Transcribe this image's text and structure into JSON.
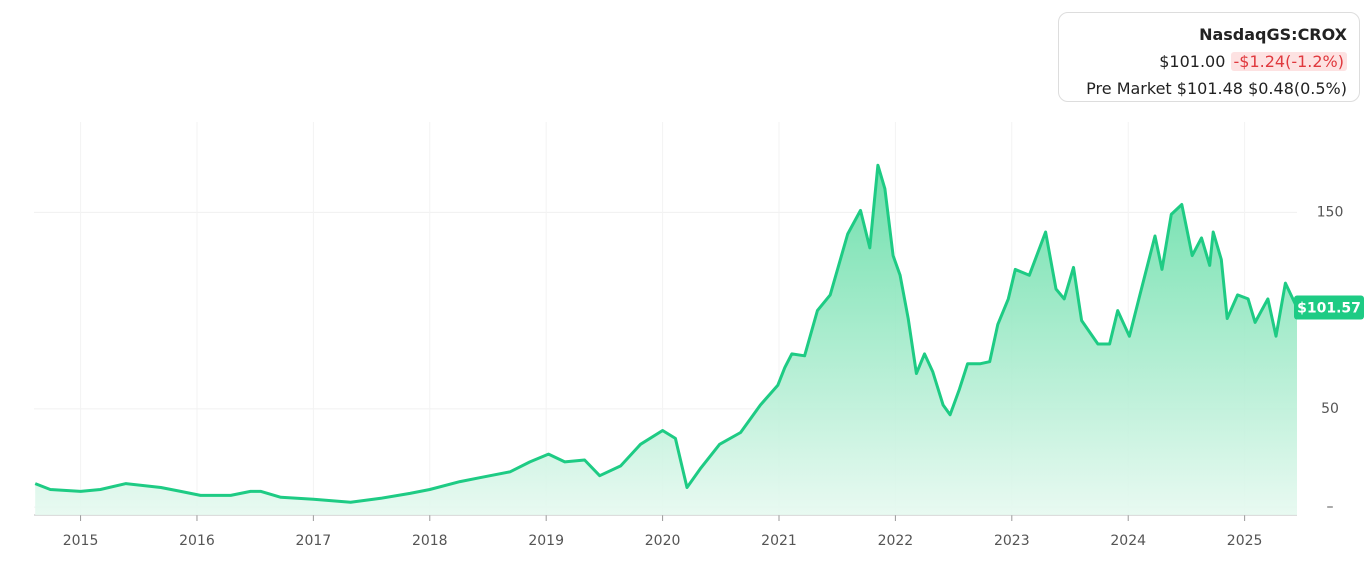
{
  "quote": {
    "ticker": "NasdaqGS:CROX",
    "price": "$101.00",
    "change": "-$1.24(-1.2%)",
    "pre_market_label": "Pre Market",
    "pre_market_price": "$101.48",
    "pre_market_change": "$0.48(0.5%)"
  },
  "chart_data": {
    "type": "area",
    "color": "#1ecb84",
    "x": [
      2014.61,
      2014.74,
      2015,
      2015.17,
      2015.39,
      2015.69,
      2015.86,
      2016.03,
      2016.29,
      2016.46,
      2016.55,
      2016.72,
      2017.0,
      2017.32,
      2017.58,
      2017.83,
      2018.0,
      2018.26,
      2018.43,
      2018.69,
      2018.86,
      2019.02,
      2019.16,
      2019.33,
      2019.46,
      2019.64,
      2019.81,
      2020.0,
      2020.11,
      2020.21,
      2020.33,
      2020.49,
      2020.67,
      2020.84,
      2020.99,
      2021.05,
      2021.11,
      2021.22,
      2021.33,
      2021.44,
      2021.59,
      2021.7,
      2021.78,
      2021.85,
      2021.91,
      2021.98,
      2022.04,
      2022.11,
      2022.18,
      2022.25,
      2022.32,
      2022.41,
      2022.47,
      2022.55,
      2022.62,
      2022.73,
      2022.81,
      2022.88,
      2022.97,
      2023.03,
      2023.15,
      2023.29,
      2023.38,
      2023.45,
      2023.53,
      2023.6,
      2023.74,
      2023.84,
      2023.91,
      2024.01,
      2024.1,
      2024.23,
      2024.29,
      2024.37,
      2024.46,
      2024.55,
      2024.63,
      2024.7,
      2024.73,
      2024.8,
      2024.85,
      2024.94,
      2025.03,
      2025.09,
      2025.2,
      2025.27,
      2025.35,
      2025.45
    ],
    "values": [
      12,
      9,
      8,
      9,
      12,
      10,
      8,
      6,
      6,
      8,
      8,
      5,
      4,
      2.5,
      4.5,
      7,
      9,
      13,
      15,
      18,
      23,
      27,
      23,
      24,
      16,
      21,
      32,
      39,
      35,
      10,
      20,
      32,
      38,
      52,
      62,
      71,
      78,
      77,
      100,
      108,
      139,
      151,
      132,
      174,
      162,
      128,
      118,
      96,
      68,
      78,
      69,
      52,
      47,
      60,
      73,
      73,
      74,
      93,
      106,
      121,
      118,
      140,
      111,
      106,
      122,
      95,
      83,
      83,
      100,
      87,
      108,
      138,
      121,
      149,
      154,
      128,
      137,
      123,
      140,
      126,
      96,
      108,
      106,
      94,
      106,
      87,
      114,
      101.57
    ],
    "last_price_label": "$101.57",
    "xlim": [
      2014.6,
      2025.45
    ],
    "xticks": [
      2015,
      2016,
      2017,
      2018,
      2019,
      2020,
      2021,
      2022,
      2023,
      2024,
      2025
    ],
    "ylim": [
      -4,
      196
    ],
    "yticks": [
      {
        "value": 0,
        "label": "–"
      },
      50,
      150
    ],
    "grid": true
  }
}
